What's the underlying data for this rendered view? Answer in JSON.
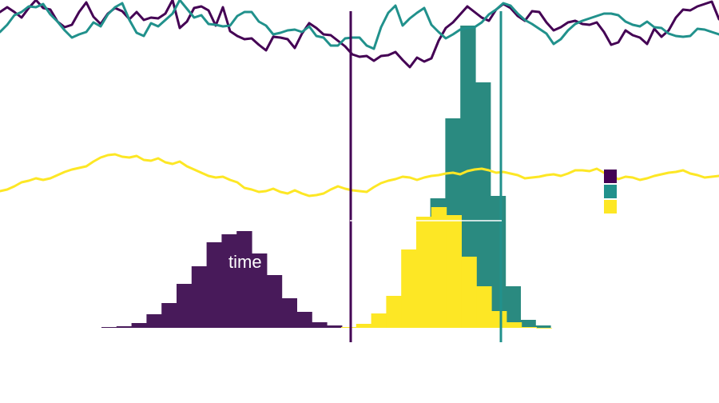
{
  "colors": {
    "purple": "#440154",
    "purple_fill": "#481a5a",
    "teal": "#21918c",
    "teal_fill": "#2a8a80",
    "yellow": "#fde725"
  },
  "chart_data": [
    {
      "type": "line",
      "title": "",
      "xlabel": "",
      "ylabel": "",
      "series": [
        {
          "color": "#440154",
          "values": [
            15,
            9,
            15,
            22,
            10,
            0,
            10,
            12,
            27,
            34,
            31,
            15,
            3,
            21,
            30,
            17,
            10,
            14,
            24,
            15,
            25,
            22,
            23,
            17,
            0,
            35,
            27,
            10,
            8,
            13,
            32,
            9,
            39,
            45,
            49,
            48,
            56,
            63,
            46,
            47,
            49,
            60,
            42,
            29,
            35,
            43,
            44,
            51,
            58,
            68,
            71,
            70,
            76,
            70,
            69,
            65,
            75,
            84,
            72,
            77,
            73,
            51,
            35,
            28,
            18,
            8,
            15,
            22,
            26,
            12,
            5,
            10,
            20,
            26,
            14,
            15,
            28,
            38,
            34,
            28,
            26,
            30,
            31,
            28,
            40,
            56,
            53,
            38,
            44,
            47,
            55,
            36,
            46,
            38,
            22,
            12,
            13,
            8,
            5,
            2,
            24
          ]
        },
        {
          "color": "#21918c",
          "values": [
            40,
            31,
            19,
            15,
            8,
            9,
            5,
            18,
            27,
            38,
            47,
            43,
            40,
            28,
            33,
            18,
            9,
            4,
            25,
            41,
            45,
            29,
            33,
            25,
            17,
            0,
            11,
            22,
            19,
            30,
            31,
            33,
            32,
            20,
            15,
            15,
            27,
            32,
            43,
            41,
            38,
            37,
            40,
            33,
            45,
            47,
            57,
            57,
            48,
            47,
            47,
            57,
            61,
            34,
            16,
            7,
            32,
            23,
            16,
            10,
            31,
            40,
            48,
            43,
            37,
            35,
            34,
            28,
            18,
            12,
            4,
            7,
            17,
            25,
            30,
            36,
            42,
            55,
            49,
            38,
            30,
            26,
            23,
            20,
            17,
            17,
            19,
            27,
            31,
            33,
            27,
            34,
            35,
            42,
            45,
            46,
            45,
            36,
            37,
            40,
            43
          ]
        },
        {
          "color": "#fde725",
          "values": [
            239,
            237,
            233,
            228,
            226,
            223,
            225,
            223,
            219,
            215,
            212,
            210,
            208,
            202,
            197,
            194,
            193,
            196,
            197,
            195,
            200,
            201,
            198,
            203,
            205,
            202,
            208,
            212,
            216,
            220,
            222,
            221,
            225,
            228,
            235,
            237,
            240,
            239,
            236,
            240,
            242,
            238,
            242,
            245,
            244,
            242,
            237,
            233,
            236,
            238,
            239,
            240,
            234,
            229,
            226,
            224,
            221,
            222,
            225,
            222,
            220,
            219,
            217,
            216,
            218,
            214,
            212,
            211,
            213,
            216,
            215,
            217,
            219,
            223,
            222,
            221,
            219,
            218,
            220,
            217,
            213,
            213,
            214,
            211,
            216,
            220,
            224,
            221,
            222,
            225,
            223,
            220,
            218,
            216,
            215,
            213,
            217,
            219,
            222,
            221,
            220
          ]
        }
      ]
    },
    {
      "type": "bar",
      "title": "",
      "xlabel": "time",
      "ylabel": "",
      "series": [
        {
          "color": "#481a5a",
          "start": 127,
          "width": 18.8,
          "values": [
            1,
            2,
            6,
            17,
            31,
            55,
            77,
            107,
            117,
            121,
            93,
            66,
            37,
            20,
            7,
            3,
            1
          ]
        },
        {
          "color": "#2a8a80",
          "start": 501,
          "width": 18.8,
          "values": [
            3,
            32,
            162,
            262,
            378,
            307,
            165,
            52,
            10,
            3
          ]
        },
        {
          "color": "#fde725",
          "start": 427,
          "width": 18.8,
          "values": [
            1,
            5,
            18,
            40,
            98,
            139,
            151,
            141,
            89,
            52,
            21,
            7,
            1,
            0
          ]
        }
      ],
      "vlines": [
        {
          "x": 439,
          "color": "#440154"
        },
        {
          "x": 627,
          "color": "#21918c"
        }
      ],
      "hline": {
        "x0": 438,
        "x1": 628,
        "y": 276,
        "color": "#ffffff"
      }
    }
  ]
}
